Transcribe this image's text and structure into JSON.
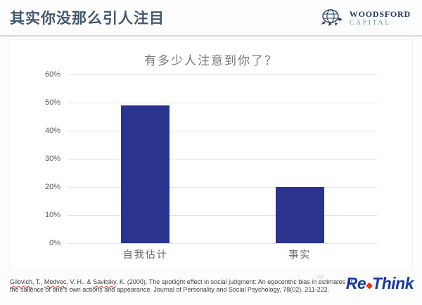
{
  "header": {
    "title": "其实你没那么引人注目",
    "brand": {
      "name": "WOODSFORD",
      "sub": "CAPITAL"
    }
  },
  "chart_data": {
    "type": "bar",
    "title": "有多少人注意到你了？",
    "categories": [
      "自我估计",
      "事实"
    ],
    "values": [
      49,
      20
    ],
    "unit": "%",
    "xlabel": "",
    "ylabel": "",
    "ylim": [
      0,
      60
    ],
    "ytick_step": 10,
    "ytick_labels": [
      "0%",
      "10%",
      "20%",
      "30%",
      "40%",
      "50%",
      "60%"
    ],
    "grid": true,
    "legend": false,
    "bar_color": "#2b3390"
  },
  "citation": {
    "line1_parts": [
      {
        "t": "Gilovich",
        "sp": true
      },
      {
        "t": ", T., ",
        "sp": false
      },
      {
        "t": "Medvec",
        "sp": true
      },
      {
        "t": ", V. H., & ",
        "sp": false
      },
      {
        "t": "Savitsky",
        "sp": true
      },
      {
        "t": ", K. (2000). The spotlight effect in social judgment: An egocentric bias in estimates of",
        "sp": false
      }
    ],
    "line2": "the salience of one's own actions and appearance. Journal of Personality and Social Psychology, 78(02), 211-222."
  },
  "watermark_logo": {
    "part1": "Re",
    "part2": "Think",
    "blue": "#1a3a9e",
    "accent": "#e8380d"
  },
  "colors": {
    "title_text": "#41586e",
    "header_rule": "#d8d8d8",
    "brand_navy": "#1f3a5f",
    "brand_teal": "#5ba3a9",
    "bar": "#2b3390",
    "gridline": "#e2e2e2",
    "axis_text": "#585858"
  }
}
